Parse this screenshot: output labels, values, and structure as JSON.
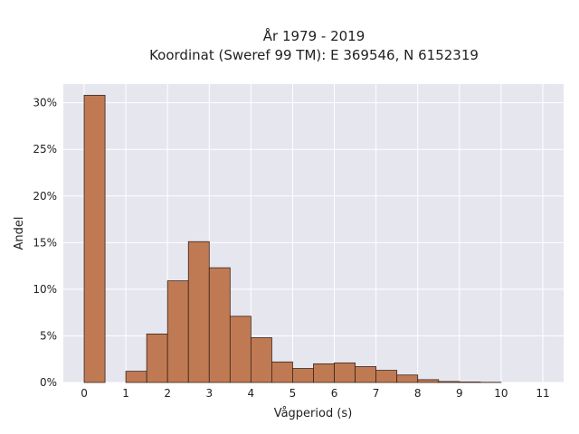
{
  "chart_data": {
    "type": "bar",
    "title": "År 1979 - 2019",
    "subtitle": "Koordinat (Sweref 99 TM): E 369546, N 6152319",
    "xlabel": "Vågperiod (s)",
    "ylabel": "Andel",
    "bin_width": 0.5,
    "bins": [
      {
        "start": 0.0,
        "value": 30.8
      },
      {
        "start": 0.5,
        "value": 0.0
      },
      {
        "start": 1.0,
        "value": 1.2
      },
      {
        "start": 1.5,
        "value": 5.2
      },
      {
        "start": 2.0,
        "value": 10.9
      },
      {
        "start": 2.5,
        "value": 15.1
      },
      {
        "start": 3.0,
        "value": 12.3
      },
      {
        "start": 3.5,
        "value": 7.1
      },
      {
        "start": 4.0,
        "value": 4.8
      },
      {
        "start": 4.5,
        "value": 2.2
      },
      {
        "start": 5.0,
        "value": 1.5
      },
      {
        "start": 5.5,
        "value": 2.0
      },
      {
        "start": 6.0,
        "value": 2.1
      },
      {
        "start": 6.5,
        "value": 1.7
      },
      {
        "start": 7.0,
        "value": 1.3
      },
      {
        "start": 7.5,
        "value": 0.8
      },
      {
        "start": 8.0,
        "value": 0.3
      },
      {
        "start": 8.5,
        "value": 0.1
      },
      {
        "start": 9.0,
        "value": 0.05
      },
      {
        "start": 9.5,
        "value": 0.02
      }
    ],
    "xlim": [
      -0.5,
      11.5
    ],
    "ylim": [
      0,
      32
    ],
    "xticks": [
      0,
      1,
      2,
      3,
      4,
      5,
      6,
      7,
      8,
      9,
      10,
      11
    ],
    "yticks": [
      {
        "value": 0,
        "label": "0%"
      },
      {
        "value": 5,
        "label": "5%"
      },
      {
        "value": 10,
        "label": "10%"
      },
      {
        "value": 15,
        "label": "15%"
      },
      {
        "value": 20,
        "label": "20%"
      },
      {
        "value": 25,
        "label": "25%"
      },
      {
        "value": 30,
        "label": "30%"
      }
    ],
    "grid": true,
    "colors": {
      "bar_fill": "#bf7a54",
      "bar_stroke": "#3a2418",
      "plot_bg": "#e6e6ef",
      "grid": "#ffffff"
    }
  }
}
